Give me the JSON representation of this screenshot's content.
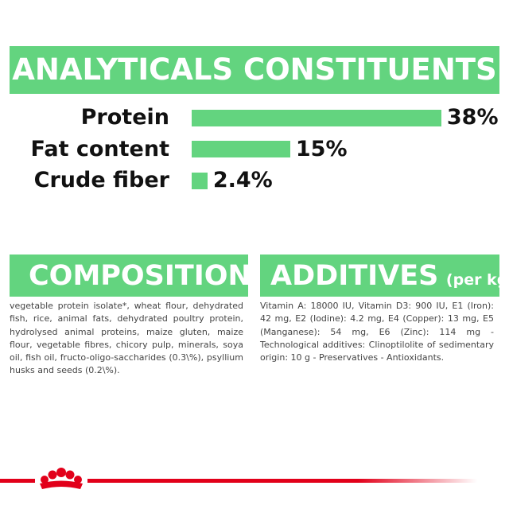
{
  "chart_data": {
    "type": "bar",
    "orientation": "horizontal",
    "title": "ANALYTICALS CONSTITUENTS",
    "categories": [
      "Protein",
      "Fat content",
      "Crude fiber"
    ],
    "values": [
      38,
      15,
      2.4
    ],
    "value_labels": [
      "38%",
      "15%",
      "2.4%"
    ],
    "color": "#63d47f"
  },
  "composition": {
    "title": "COMPOSITION",
    "text": "vegetable protein isolate*, wheat flour, dehydrated fish, rice, animal fats, dehydrated poultry protein, hydrolysed animal proteins, maize gluten, maize flour, vegetable fibres, chicory pulp, minerals, soya oil, fish oil, fructo-oligo-saccharides (0.3\\%), psyllium husks and seeds (0.2\\%)."
  },
  "additives": {
    "title": "ADDITIVES",
    "subtitle": "(per kg)",
    "text": "Vitamin A: 18000 IU, Vitamin D3: 900 IU, E1 (Iron): 42 mg, E2 (Iodine): 4.2 mg, E4 (Copper): 13 mg, E5 (Manganese): 54 mg, E6 (Zinc): 114 mg - Technological additives: Clinoptilolite of sedimentary origin: 10 g - Preservatives - Antioxidants."
  }
}
